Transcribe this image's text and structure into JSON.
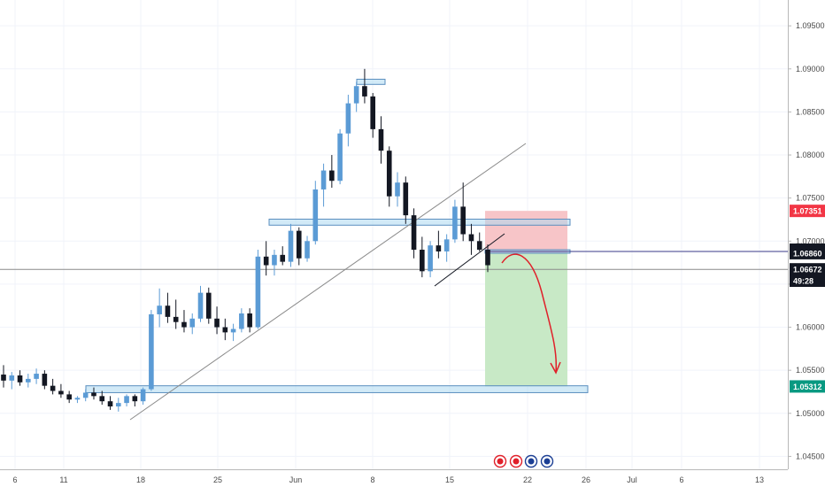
{
  "chart_data": {
    "type": "candlestick",
    "xlabel": "",
    "ylabel": "",
    "ylim": [
      1.0435,
      1.098
    ],
    "grid": true,
    "y_ticks": [
      "1.04500",
      "1.05000",
      "1.05500",
      "1.06000",
      "1.06500",
      "1.07000",
      "1.07500",
      "1.08000",
      "1.08500",
      "1.09000",
      "1.09500"
    ],
    "x_tick_labels": [
      "6",
      "11",
      "18",
      "25",
      "Jun",
      "8",
      "15",
      "22",
      "26",
      "Jul",
      "6",
      "13"
    ],
    "price_tags": [
      {
        "label": "1.07351",
        "value": 1.07351,
        "color": "#f23645"
      },
      {
        "label": "1.06900",
        "value": 1.069,
        "color": "#131722"
      },
      {
        "label": "1.06860",
        "value": 1.0686,
        "color": "#131722"
      },
      {
        "label": "1.06672",
        "value": 1.06672,
        "color": "#131722"
      },
      {
        "label": "49:28",
        "value": 1.0654,
        "color": "#131722"
      },
      {
        "label": "1.05312",
        "value": 1.05312,
        "color": "#089981"
      }
    ],
    "series": [
      {
        "values": [
          [
            1.0545,
            1.0556,
            1.053,
            1.0538
          ],
          [
            1.0538,
            1.0548,
            1.0528,
            1.0544
          ],
          [
            1.0544,
            1.055,
            1.0532,
            1.0536
          ],
          [
            1.0536,
            1.0546,
            1.053,
            1.054
          ],
          [
            1.054,
            1.0552,
            1.0534,
            1.0546
          ],
          [
            1.0546,
            1.055,
            1.0528,
            1.0532
          ],
          [
            1.0532,
            1.054,
            1.0522,
            1.0526
          ],
          [
            1.0526,
            1.0534,
            1.0518,
            1.0522
          ],
          [
            1.0522,
            1.0526,
            1.0512,
            1.0516
          ],
          [
            1.0516,
            1.052,
            1.0512,
            1.0518
          ],
          [
            1.0518,
            1.0528,
            1.0514,
            1.0524
          ],
          [
            1.0524,
            1.053,
            1.0516,
            1.052
          ],
          [
            1.052,
            1.0526,
            1.051,
            1.0514
          ],
          [
            1.0514,
            1.052,
            1.0504,
            1.0508
          ],
          [
            1.0508,
            1.0518,
            1.0502,
            1.0512
          ],
          [
            1.0512,
            1.0522,
            1.0508,
            1.052
          ],
          [
            1.052,
            1.0522,
            1.0508,
            1.0514
          ],
          [
            1.0514,
            1.053,
            1.051,
            1.0528
          ],
          [
            1.0528,
            1.062,
            1.0526,
            1.0615
          ],
          [
            1.0615,
            1.0645,
            1.06,
            1.0625
          ],
          [
            1.0625,
            1.064,
            1.0605,
            1.0612
          ],
          [
            1.0612,
            1.0632,
            1.0598,
            1.0606
          ],
          [
            1.0606,
            1.062,
            1.0594,
            1.06
          ],
          [
            1.06,
            1.0616,
            1.0592,
            1.061
          ],
          [
            1.061,
            1.0648,
            1.0606,
            1.064
          ],
          [
            1.064,
            1.0646,
            1.0604,
            1.061
          ],
          [
            1.061,
            1.0624,
            1.0592,
            1.06
          ],
          [
            1.06,
            1.061,
            1.0585,
            1.0594
          ],
          [
            1.0594,
            1.0604,
            1.0584,
            1.0598
          ],
          [
            1.0598,
            1.0622,
            1.0594,
            1.0616
          ],
          [
            1.0616,
            1.0622,
            1.0594,
            1.06
          ],
          [
            1.06,
            1.069,
            1.0598,
            1.0682
          ],
          [
            1.0682,
            1.07,
            1.066,
            1.0672
          ],
          [
            1.0672,
            1.069,
            1.066,
            1.0684
          ],
          [
            1.0684,
            1.0694,
            1.0672,
            1.0676
          ],
          [
            1.0676,
            1.072,
            1.067,
            1.0712
          ],
          [
            1.0712,
            1.0716,
            1.0672,
            1.068
          ],
          [
            1.068,
            1.0706,
            1.0676,
            1.07
          ],
          [
            1.07,
            1.077,
            1.0696,
            1.076
          ],
          [
            1.076,
            1.079,
            1.074,
            1.0782
          ],
          [
            1.0782,
            1.08,
            1.0762,
            1.077
          ],
          [
            1.077,
            1.083,
            1.0766,
            1.0825
          ],
          [
            1.0825,
            1.087,
            1.081,
            1.086
          ],
          [
            1.086,
            1.0885,
            1.085,
            1.088
          ],
          [
            1.088,
            1.09,
            1.086,
            1.0868
          ],
          [
            1.0868,
            1.0872,
            1.082,
            1.083
          ],
          [
            1.083,
            1.0845,
            1.079,
            1.0805
          ],
          [
            1.0805,
            1.081,
            1.074,
            1.0752
          ],
          [
            1.0752,
            1.078,
            1.074,
            1.0768
          ],
          [
            1.0768,
            1.0775,
            1.072,
            1.073
          ],
          [
            1.073,
            1.0738,
            1.068,
            1.069
          ],
          [
            1.069,
            1.0705,
            1.0658,
            1.0665
          ],
          [
            1.0665,
            1.07,
            1.0658,
            1.0695
          ],
          [
            1.0695,
            1.0712,
            1.068,
            1.0688
          ],
          [
            1.0688,
            1.0708,
            1.0676,
            1.0702
          ],
          [
            1.0702,
            1.0748,
            1.0698,
            1.074
          ],
          [
            1.074,
            1.0768,
            1.07,
            1.0708
          ],
          [
            1.0708,
            1.072,
            1.0684,
            1.07
          ],
          [
            1.07,
            1.071,
            1.0688,
            1.069
          ],
          [
            1.069,
            1.0696,
            1.0664,
            1.0672
          ]
        ]
      }
    ],
    "drawings": {
      "horizontal_zones": [
        {
          "from_x": 13.2,
          "to_x": 27.8,
          "y_low": 1.0524,
          "y_high": 1.0532
        },
        {
          "from_x": 11.0,
          "to_x": 24.5,
          "y_low": 1.07185,
          "y_high": 1.07255
        },
        {
          "from_x": 21.0,
          "to_x": 21.85,
          "y_low": 1.0882,
          "y_high": 1.0888
        },
        {
          "from_x": 23.0,
          "to_x": 24.5,
          "y_low": 1.0686,
          "y_high": 1.069
        }
      ],
      "trendlines": [
        {
          "x1": -6.5,
          "y1": 1.0504,
          "x2": 23.8,
          "y2": 1.0812,
          "color": "#8a8a8a"
        },
        {
          "x1": 13.2,
          "y1": 1.0644,
          "x2": 19.0,
          "y2": 1.071,
          "color": "#131722"
        }
      ],
      "position": {
        "from_x": 23.0,
        "to_x": 24.5,
        "entry": 1.0686,
        "stop": 1.07351,
        "target": 1.05312
      },
      "horizontal_lines": [
        {
          "y": 1.0688,
          "color": "#3a3a8a"
        },
        {
          "y": 1.06672,
          "color": "#8a8a8a"
        }
      ],
      "arrow": {
        "x1": 23.35,
        "y1": 1.0688,
        "x2": 26.5,
        "y2": 1.0555,
        "color": "#e0202a"
      }
    }
  }
}
